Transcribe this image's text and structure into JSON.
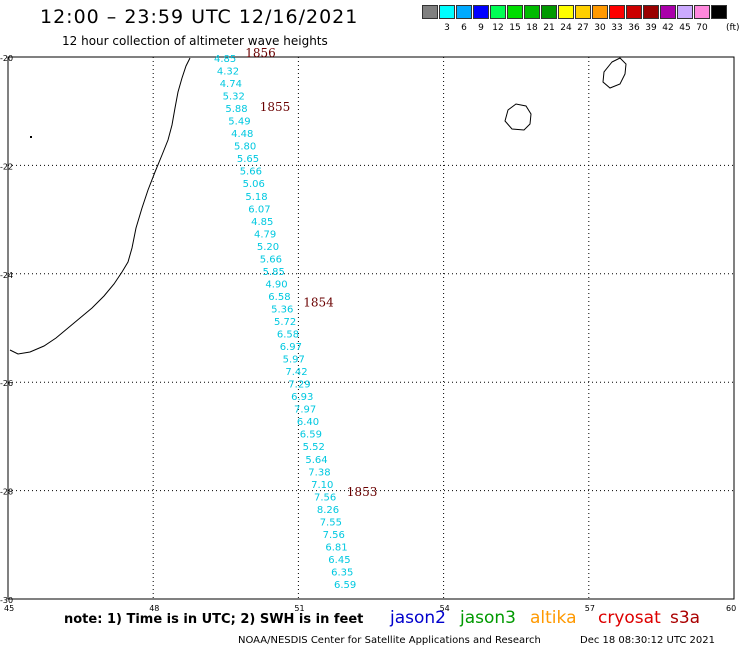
{
  "header": {
    "title": "12:00 – 23:59 UTC 12/16/2021",
    "subtitle": "12 hour collection of altimeter wave heights"
  },
  "colorbar": {
    "unit": "(ft)",
    "swatches": [
      {
        "label": "",
        "color": "#808080"
      },
      {
        "label": "3",
        "color": "#00ffff"
      },
      {
        "label": "6",
        "color": "#00aaff"
      },
      {
        "label": "9",
        "color": "#0000ff"
      },
      {
        "label": "12",
        "color": "#00ff55"
      },
      {
        "label": "15",
        "color": "#00dd00"
      },
      {
        "label": "18",
        "color": "#00bb00"
      },
      {
        "label": "21",
        "color": "#009900"
      },
      {
        "label": "24",
        "color": "#ffff00"
      },
      {
        "label": "27",
        "color": "#ffd000"
      },
      {
        "label": "30",
        "color": "#ff9900"
      },
      {
        "label": "33",
        "color": "#ff0000"
      },
      {
        "label": "36",
        "color": "#cc0000"
      },
      {
        "label": "39",
        "color": "#990000"
      },
      {
        "label": "42",
        "color": "#aa00aa"
      },
      {
        "label": "45",
        "color": "#ccaaff"
      },
      {
        "label": "70",
        "color": "#ff88dd"
      },
      {
        "label": "",
        "color": "#000000"
      }
    ]
  },
  "map": {
    "lon_ticks": [
      "45",
      "48",
      "51",
      "54",
      "57",
      "60"
    ],
    "lat_ticks": [
      "-20",
      "-22",
      "-24",
      "-26",
      "-28",
      "-30"
    ],
    "swh_color": "#00c8e0",
    "pass_color": "#6a0000",
    "passes": [
      {
        "label": "1856",
        "lon": 49.9,
        "lat": -20.0
      },
      {
        "label": "1855",
        "lon": 50.2,
        "lat": -21.0
      },
      {
        "label": "1854",
        "lon": 51.1,
        "lat": -24.6
      },
      {
        "label": "1853",
        "lon": 52.0,
        "lat": -28.1
      }
    ],
    "swh_values": [
      "4.85",
      "4.32",
      "4.74",
      "5.32",
      "5.88",
      "5.49",
      "4.48",
      "5.80",
      "5.65",
      "5.66",
      "5.06",
      "5.18",
      "6.07",
      "4.85",
      "4.79",
      "5.20",
      "5.66",
      "5.85",
      "4.90",
      "6.58",
      "5.36",
      "5.72",
      "6.58",
      "6.97",
      "5.97",
      "7.42",
      "7.29",
      "6.93",
      "7.97",
      "6.40",
      "6.59",
      "5.52",
      "5.64",
      "7.38",
      "7.10",
      "7.56",
      "8.26",
      "7.55",
      "7.56",
      "6.81",
      "6.45",
      "6.35",
      "6.59"
    ]
  },
  "footer": {
    "note": "note:  1) Time is in UTC;  2) SWH is in feet",
    "satellites": [
      {
        "name": "jason2",
        "color": "#0000cc"
      },
      {
        "name": "jason3",
        "color": "#009900"
      },
      {
        "name": "altika",
        "color": "#ff9900"
      },
      {
        "name": "cryosat",
        "color": "#dd0000"
      },
      {
        "name": "s3a",
        "color": "#aa0000"
      }
    ],
    "credit": "NOAA/NESDIS Center for Satellite Applications and Research",
    "timestamp": "Dec 18 08:30:12 UTC 2021"
  }
}
